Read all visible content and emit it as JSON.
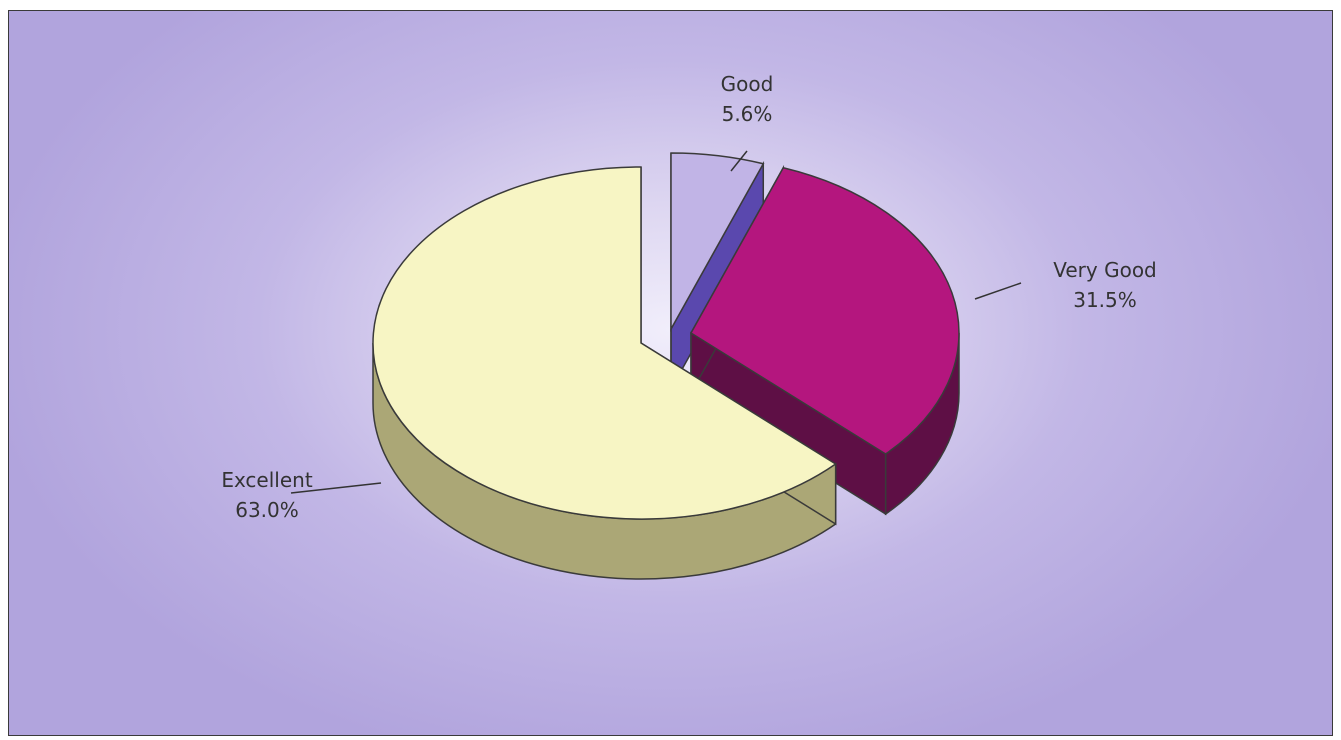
{
  "chart_data": {
    "type": "pie",
    "style": "3d-exploded",
    "title": "",
    "slices": [
      {
        "label": "Excellent",
        "value": 63.0,
        "value_label": "63.0%",
        "color": "#f7f5c4",
        "side_color": "#aba776"
      },
      {
        "label": "Good",
        "value": 5.6,
        "value_label": "5.6%",
        "color": "#c1b4e6",
        "side_color": "#5a48ae"
      },
      {
        "label": "Very Good",
        "value": 31.5,
        "value_label": "31.5%",
        "color": "#b4167e",
        "side_color": "#5e0f45"
      }
    ],
    "legend": "none",
    "background_color": "#b8acdf"
  }
}
